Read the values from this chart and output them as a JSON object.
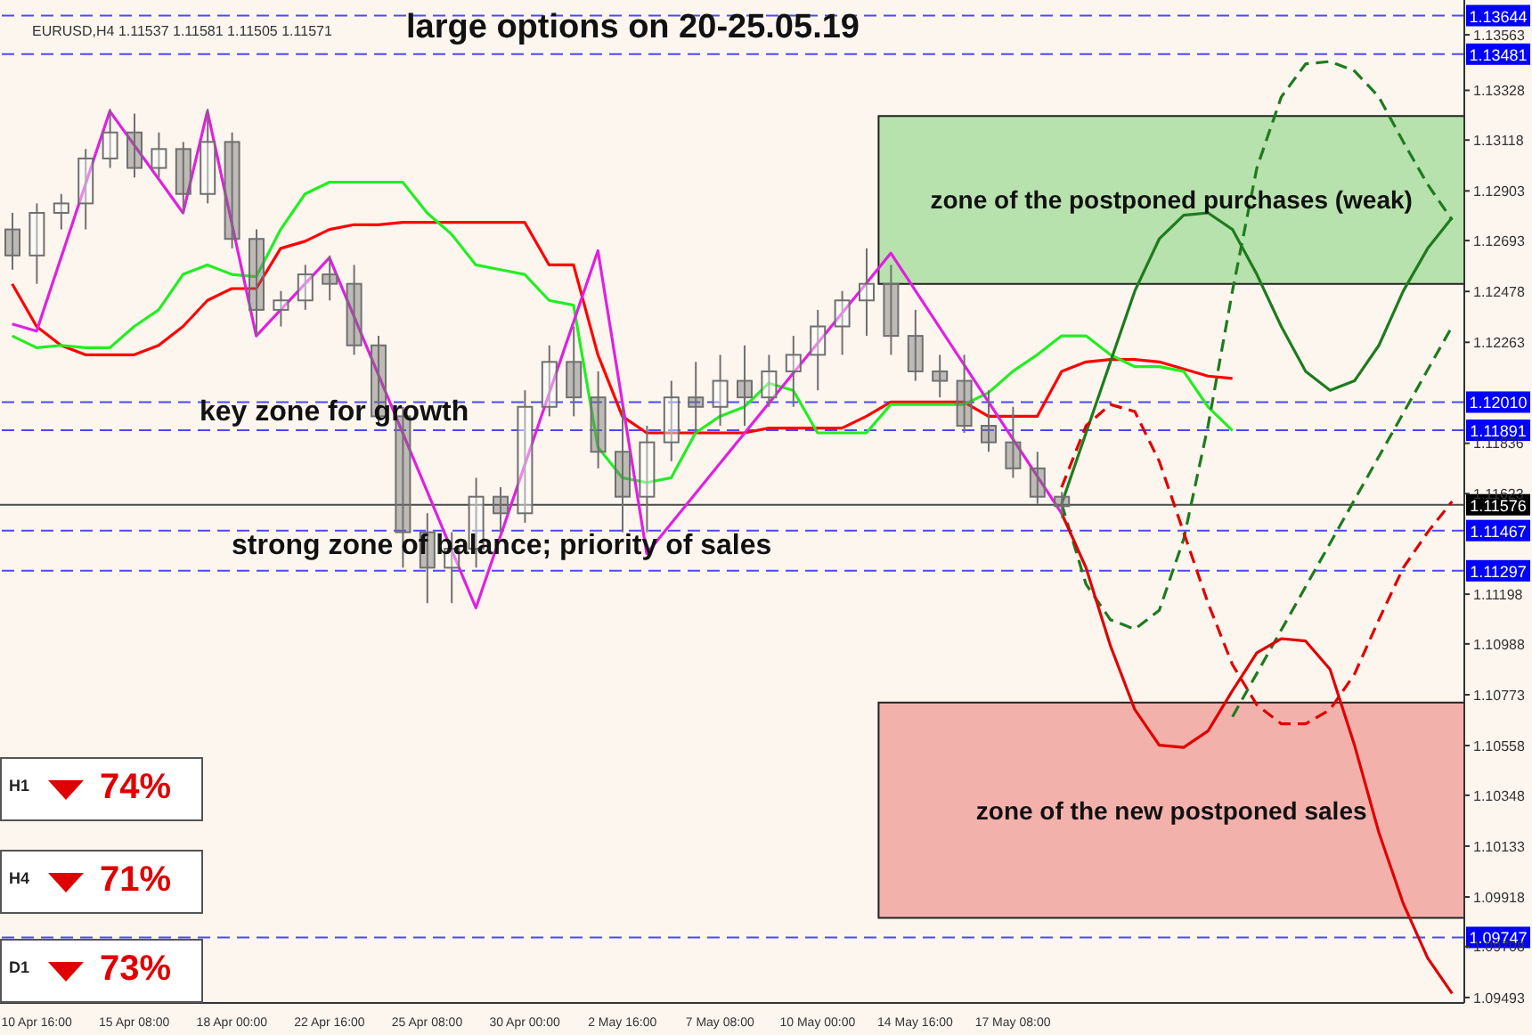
{
  "chart_data": [
    {
      "type": "candlestick",
      "title": "EURUSD,H4 1.11537 1.11581 1.11505 1.11571",
      "color": "#707070",
      "categories": [
        null,
        "10 Apr 16:00",
        null,
        null,
        null,
        "15 Apr 08:00",
        null,
        null,
        null,
        "18 Apr 00:00",
        null,
        null,
        null,
        "22 Apr 16:00",
        null,
        null,
        null,
        "25 Apr 08:00",
        null,
        null,
        null,
        "30 Apr 00:00",
        null,
        null,
        null,
        "2 May 16:00",
        null,
        null,
        null,
        "7 May 08:00",
        null,
        null,
        null,
        "10 May 00:00",
        null,
        null,
        null,
        "14 May 16:00",
        null,
        null,
        null,
        "17 May 08:00",
        null,
        null,
        null,
        null,
        null,
        null,
        null,
        null,
        null,
        null,
        null,
        null,
        null,
        null,
        null,
        null,
        null,
        null
      ],
      "ohlc": [
        [
          1.1274,
          1.1281,
          1.1257,
          1.1263
        ],
        [
          1.1263,
          1.1285,
          1.1251,
          1.1281
        ],
        [
          1.1281,
          1.1289,
          1.1274,
          1.1285
        ],
        [
          1.1285,
          1.1308,
          1.1274,
          1.1304
        ],
        [
          1.1304,
          1.1325,
          1.13,
          1.1315
        ],
        [
          1.1315,
          1.1323,
          1.1296,
          1.13
        ],
        [
          1.13,
          1.1315,
          1.1296,
          1.1308
        ],
        [
          1.1308,
          1.1311,
          1.1281,
          1.1289
        ],
        [
          1.1289,
          1.1325,
          1.1285,
          1.1311
        ],
        [
          1.1311,
          1.1315,
          1.1266,
          1.127
        ],
        [
          1.127,
          1.1274,
          1.1229,
          1.124
        ],
        [
          1.124,
          1.1248,
          1.1233,
          1.1244
        ],
        [
          1.1244,
          1.1259,
          1.124,
          1.1255
        ],
        [
          1.1255,
          1.1263,
          1.1244,
          1.1251
        ],
        [
          1.1251,
          1.1259,
          1.1221,
          1.1225
        ],
        [
          1.1225,
          1.1229,
          1.1191,
          1.1195
        ],
        [
          1.1195,
          1.1199,
          1.1131,
          1.1146
        ],
        [
          1.1146,
          1.1154,
          1.1116,
          1.1131
        ],
        [
          1.1131,
          1.1146,
          1.1116,
          1.1139
        ],
        [
          1.1139,
          1.1169,
          1.1131,
          1.1161
        ],
        [
          1.1161,
          1.1165,
          1.1146,
          1.1154
        ],
        [
          1.1154,
          1.1206,
          1.115,
          1.1199
        ],
        [
          1.1199,
          1.1225,
          1.1195,
          1.1218
        ],
        [
          1.1218,
          1.1233,
          1.1195,
          1.1203
        ],
        [
          1.1203,
          1.1214,
          1.1173,
          1.118
        ],
        [
          1.118,
          1.1199,
          1.1146,
          1.1161
        ],
        [
          1.1161,
          1.1191,
          1.1146,
          1.1184
        ],
        [
          1.1184,
          1.121,
          1.1176,
          1.1203
        ],
        [
          1.1203,
          1.1218,
          1.1188,
          1.1199
        ],
        [
          1.1199,
          1.1221,
          1.1191,
          1.121
        ],
        [
          1.121,
          1.1225,
          1.1191,
          1.1203
        ],
        [
          1.1203,
          1.1221,
          1.1199,
          1.1214
        ],
        [
          1.1214,
          1.1229,
          1.1199,
          1.1221
        ],
        [
          1.1221,
          1.124,
          1.1206,
          1.1233
        ],
        [
          1.1233,
          1.1248,
          1.1221,
          1.1244
        ],
        [
          1.1244,
          1.1266,
          1.1229,
          1.1251
        ],
        [
          1.1251,
          1.1259,
          1.1221,
          1.1229
        ],
        [
          1.1229,
          1.124,
          1.121,
          1.1214
        ],
        [
          1.1214,
          1.1221,
          1.1203,
          1.121
        ],
        [
          1.121,
          1.1221,
          1.1188,
          1.1191
        ],
        [
          1.1191,
          1.1206,
          1.118,
          1.1184
        ],
        [
          1.1184,
          1.1199,
          1.1169,
          1.1173
        ],
        [
          1.1173,
          1.118,
          1.1158,
          1.1161
        ],
        [
          1.1161,
          1.1163,
          1.1152,
          1.1157
        ],
        null,
        null,
        null,
        null,
        null,
        null,
        null,
        null,
        null,
        null,
        null,
        null,
        null,
        null,
        null,
        null
      ],
      "series": [
        {
          "type": "line",
          "color": "#ff0000",
          "line_style": "solid",
          "values": [
            1.1251,
            1.1233,
            1.1225,
            1.1221,
            1.1221,
            1.1221,
            1.1225,
            1.1233,
            1.1244,
            1.1249,
            1.1249,
            1.1266,
            1.1269,
            1.1274,
            1.1276,
            1.1276,
            1.1277,
            1.1277,
            1.1277,
            1.1277,
            1.1277,
            1.1277,
            1.1259,
            1.1259,
            1.1221,
            1.1195,
            1.1188,
            1.1188,
            1.1188,
            1.1188,
            1.1188,
            1.119,
            1.119,
            1.119,
            1.119,
            1.1195,
            1.1201,
            1.1201,
            1.1201,
            1.1201,
            1.1195,
            1.1195,
            1.1195,
            1.1214,
            1.1218,
            1.1219,
            1.1219,
            1.1218,
            1.1215,
            1.1212,
            1.1211,
            null,
            null,
            null,
            null,
            null,
            null,
            null,
            null,
            null
          ]
        },
        {
          "type": "line",
          "color": "#22ee22",
          "line_style": "solid",
          "values": [
            1.1229,
            1.1224,
            1.1225,
            1.1224,
            1.1224,
            1.1233,
            1.124,
            1.1255,
            1.1259,
            1.1255,
            1.1254,
            1.1274,
            1.1289,
            1.1294,
            1.1294,
            1.1294,
            1.1294,
            1.1281,
            1.1272,
            1.1259,
            1.1257,
            1.1255,
            1.1244,
            1.1242,
            1.1182,
            1.1169,
            1.1167,
            1.1169,
            1.1188,
            1.1195,
            1.1199,
            1.1209,
            1.1206,
            1.1188,
            1.1188,
            1.1188,
            1.12,
            1.12,
            1.12,
            1.12,
            1.1205,
            1.1214,
            1.1221,
            1.1229,
            1.1229,
            1.1221,
            1.1216,
            1.1216,
            1.1214,
            1.1199,
            1.1189,
            null,
            null,
            null,
            null,
            null,
            null,
            null,
            null,
            null
          ]
        },
        {
          "type": "line",
          "color": "#e020e0",
          "line_style": "solid",
          "values": [
            1.1234,
            1.1231,
            null,
            null,
            1.1324,
            null,
            null,
            1.1281,
            1.1324,
            null,
            1.1229,
            null,
            null,
            1.1262,
            null,
            null,
            null,
            null,
            null,
            1.1114,
            null,
            null,
            null,
            null,
            1.1265,
            null,
            1.1137,
            null,
            null,
            null,
            null,
            null,
            null,
            null,
            null,
            null,
            1.1264,
            null,
            null,
            null,
            null,
            null,
            null,
            1.1154,
            null,
            null,
            null,
            null,
            null,
            null,
            null,
            null,
            null,
            null,
            null,
            null,
            null,
            null,
            null,
            null
          ]
        },
        {
          "type": "line",
          "color": "#1e7b1e",
          "line_style": "solid",
          "values": [
            null,
            null,
            null,
            null,
            null,
            null,
            null,
            null,
            null,
            null,
            null,
            null,
            null,
            null,
            null,
            null,
            null,
            null,
            null,
            null,
            null,
            null,
            null,
            null,
            null,
            null,
            null,
            null,
            null,
            null,
            null,
            null,
            null,
            null,
            null,
            null,
            null,
            null,
            null,
            null,
            null,
            null,
            null,
            1.1158,
            1.1188,
            1.1218,
            1.1248,
            1.127,
            1.128,
            1.1281,
            1.1274,
            1.1255,
            1.1233,
            1.1214,
            1.1206,
            1.121,
            1.1225,
            1.1248,
            1.1266,
            1.1279
          ]
        },
        {
          "type": "line",
          "color": "#1e7b1e",
          "line_style": "dashed",
          "values": [
            null,
            null,
            null,
            null,
            null,
            null,
            null,
            null,
            null,
            null,
            null,
            null,
            null,
            null,
            null,
            null,
            null,
            null,
            null,
            null,
            null,
            null,
            null,
            null,
            null,
            null,
            null,
            null,
            null,
            null,
            null,
            null,
            null,
            null,
            null,
            null,
            null,
            null,
            null,
            null,
            null,
            null,
            null,
            1.1158,
            1.1124,
            1.1109,
            1.1105,
            1.1113,
            1.1143,
            1.1191,
            1.1248,
            1.13,
            1.133,
            1.1344,
            1.1345,
            1.1341,
            1.133,
            1.1311,
            1.1293,
            1.1278
          ]
        },
        {
          "type": "line",
          "color": "#1e7b1e",
          "line_style": "dashed",
          "values": [
            null,
            null,
            null,
            null,
            null,
            null,
            null,
            null,
            null,
            null,
            null,
            null,
            null,
            null,
            null,
            null,
            null,
            null,
            null,
            null,
            null,
            null,
            null,
            null,
            null,
            null,
            null,
            null,
            null,
            null,
            null,
            null,
            null,
            null,
            null,
            null,
            null,
            null,
            null,
            null,
            null,
            null,
            null,
            null,
            null,
            null,
            null,
            null,
            null,
            null,
            1.1068,
            null,
            null,
            null,
            null,
            null,
            null,
            null,
            null,
            1.1233
          ]
        },
        {
          "type": "line",
          "color": "#e00000",
          "line_style": "solid",
          "values": [
            null,
            null,
            null,
            null,
            null,
            null,
            null,
            null,
            null,
            null,
            null,
            null,
            null,
            null,
            null,
            null,
            null,
            null,
            null,
            null,
            null,
            null,
            null,
            null,
            null,
            null,
            null,
            null,
            null,
            null,
            null,
            null,
            null,
            null,
            null,
            null,
            null,
            null,
            null,
            null,
            null,
            null,
            null,
            1.1154,
            1.1131,
            1.1098,
            1.1071,
            1.1056,
            1.1055,
            1.1062,
            1.1079,
            1.1095,
            1.1101,
            1.11,
            1.1088,
            1.1056,
            1.1019,
            1.0989,
            1.0966,
            1.0951
          ]
        },
        {
          "type": "line",
          "color": "#e00000",
          "line_style": "dashed",
          "values": [
            null,
            null,
            null,
            null,
            null,
            null,
            null,
            null,
            null,
            null,
            null,
            null,
            null,
            null,
            null,
            null,
            null,
            null,
            null,
            null,
            null,
            null,
            null,
            null,
            null,
            null,
            null,
            null,
            null,
            null,
            null,
            null,
            null,
            null,
            null,
            null,
            null,
            null,
            null,
            null,
            null,
            null,
            null,
            1.1165,
            1.1191,
            1.12,
            1.1197,
            1.1176,
            1.1146,
            1.1116,
            1.109,
            1.1073,
            1.1065,
            1.1065,
            1.1071,
            1.1086,
            1.1109,
            1.1131,
            1.1146,
            1.1159
          ]
        }
      ],
      "marker": "none",
      "ylim": [
        1.0947,
        1.1371
      ],
      "yticks": [
        1.09493,
        1.09708,
        1.09918,
        1.10133,
        1.10348,
        1.10558,
        1.10773,
        1.10988,
        1.11198,
        1.11623,
        1.11836,
        1.12263,
        1.12478,
        1.12693,
        1.12903,
        1.13118,
        1.13328,
        1.13563
      ],
      "ref_lines": [
        {
          "axis": "y",
          "value": 1.13644,
          "label": "1.13644",
          "color": "#0000ff",
          "line_style": "dashed"
        },
        {
          "axis": "y",
          "value": 1.13481,
          "label": "1.13481",
          "color": "#0000ff",
          "line_style": "dashed"
        },
        {
          "axis": "y",
          "value": 1.1201,
          "label": "1.12010",
          "color": "#0000ff",
          "line_style": "dashed"
        },
        {
          "axis": "y",
          "value": 1.11891,
          "label": "1.11891",
          "color": "#0000ff",
          "line_style": "dashed"
        },
        {
          "axis": "y",
          "value": 1.11576,
          "label": "1.11576",
          "color": "#000000",
          "line_style": "solid"
        },
        {
          "axis": "y",
          "value": 1.11467,
          "label": "1.11467",
          "color": "#0000ff",
          "line_style": "dashed"
        },
        {
          "axis": "y",
          "value": 1.11297,
          "label": "1.11297",
          "color": "#0000ff",
          "line_style": "dashed"
        },
        {
          "axis": "y",
          "value": 1.09747,
          "label": "1.09747",
          "color": "#0000ff",
          "line_style": "dashed"
        }
      ],
      "bands": [
        {
          "axis": "y",
          "from": 1.1251,
          "to": 1.1322,
          "label": "zone of the postponed purchases (weak)",
          "color": "#33bb33"
        },
        {
          "axis": "y",
          "from": 1.0983,
          "to": 1.1074,
          "label": "zone of the new postponed sales",
          "color": "#e03030"
        }
      ],
      "annotations": [
        "large options on 20-25.05.19",
        "key zone for growth",
        "strong zone of balance; priority of sales"
      ]
    },
    {
      "type": "other",
      "categories": [
        "H1",
        "H4",
        "D1"
      ],
      "value_labels": [
        "74%",
        "71%",
        "73%"
      ],
      "color": "#e00000"
    }
  ]
}
